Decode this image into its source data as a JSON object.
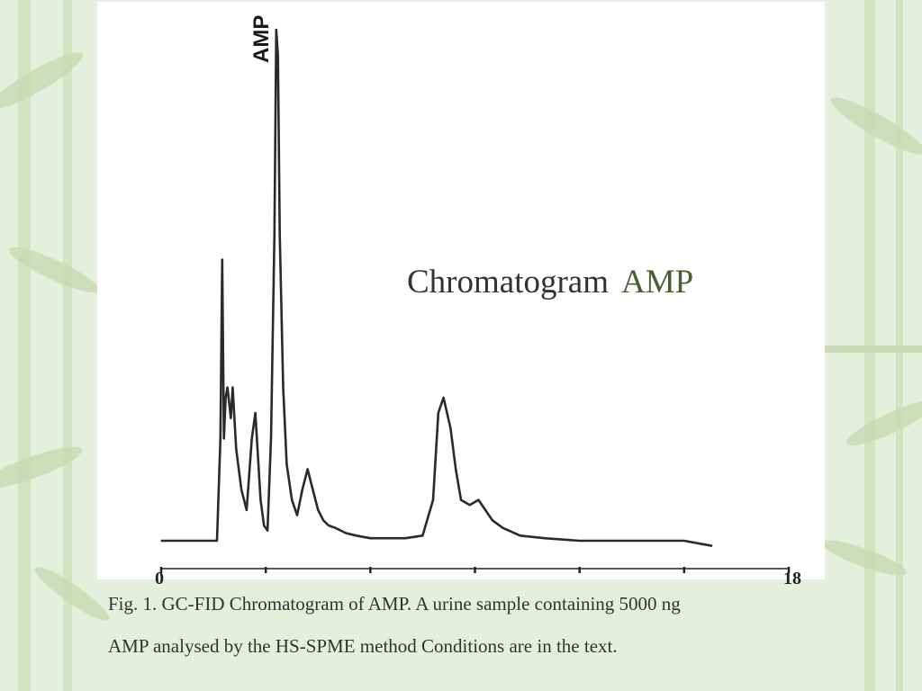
{
  "slide": {
    "title": "Chromatogram",
    "title_accent": "AMP",
    "caption_line1": "Fig. 1. GC-FID Chromatogram of AMP. A urine sample containing  5000 ng",
    "caption_line2": "AMP analysed by the HS-SPME method Conditions are in the text.",
    "background_color": "#e6eedc",
    "accent_color": "#4a5e2f"
  },
  "chart_data": {
    "type": "line",
    "title": "",
    "xlabel": "",
    "ylabel": "",
    "xlim": [
      0,
      18
    ],
    "ylim": [
      0,
      100
    ],
    "tick_labels": [
      "0",
      "18"
    ],
    "peak_label": "AMP",
    "series": [
      {
        "x": [
          0.0,
          1.0,
          1.6,
          1.7,
          1.75,
          1.8,
          1.85,
          1.9,
          2.0,
          2.05,
          2.15,
          2.3,
          2.45,
          2.6,
          2.7,
          2.85,
          2.95,
          3.05,
          3.15,
          3.25,
          3.3,
          3.35,
          3.4,
          3.5,
          3.6,
          3.75,
          3.9,
          4.05,
          4.2,
          4.35,
          4.5,
          4.65,
          4.8,
          5.0,
          5.3,
          5.6,
          6.0,
          6.5,
          7.0,
          7.5,
          7.8,
          7.95,
          8.1,
          8.3,
          8.45,
          8.6,
          8.85,
          9.1,
          9.3,
          9.5,
          9.8,
          10.3,
          11.0,
          12.0,
          13.0,
          14.0,
          15.0,
          15.8
        ],
        "y": [
          0,
          0,
          0,
          20,
          55,
          20,
          28,
          30,
          24,
          30,
          18,
          10,
          6,
          20,
          25,
          8,
          3,
          2,
          20,
          60,
          100,
          95,
          60,
          30,
          15,
          8,
          5,
          10,
          14,
          10,
          6,
          4,
          3,
          2.5,
          1.5,
          1,
          0.5,
          0.5,
          0.5,
          1,
          8,
          25,
          28,
          22,
          14,
          8,
          7,
          8,
          6,
          4,
          2.5,
          1,
          0.5,
          0,
          0,
          0,
          0,
          -1
        ]
      }
    ]
  }
}
